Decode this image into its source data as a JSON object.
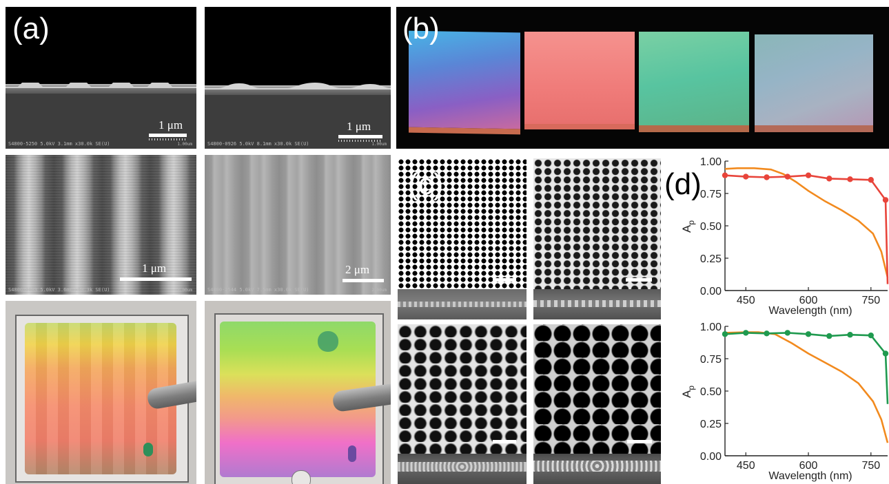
{
  "panels": {
    "a": {
      "letter": "(a)",
      "sem_top_left": {
        "scale": "1 μm",
        "info": "S4800-5250 5.0kV 3.1mm x30.0k SE(U)",
        "info_right": "1.00um"
      },
      "sem_top_right": {
        "scale": "1 μm",
        "info": "S4800-0926 5.0kV 8.1mm x30.0k SE(U)",
        "info_right": "1.00um"
      },
      "sem_mid_left": {
        "scale": "1 μm",
        "info": "S4800-0883 5.0kV 3.6mm x50.3k SE(U)",
        "info_right": "1.00um"
      },
      "sem_mid_right": {
        "scale": "2 μm",
        "info": "S4800-2544 5.0kV 7.5mm x30.0k SE(U)",
        "info_right": "2.00um"
      }
    },
    "b": {
      "letter": "(b)"
    },
    "c": {
      "letter": "(c)"
    },
    "d": {
      "letter": "(d)"
    }
  },
  "chart_data": [
    {
      "type": "line",
      "xlabel": "Wavelength (nm)",
      "ylabel": "A",
      "ylabel_sub": "p",
      "xlim": [
        400,
        790
      ],
      "ylim": [
        0,
        1.0
      ],
      "xticks": [
        450,
        600,
        750
      ],
      "yticks": [
        0.0,
        0.25,
        0.5,
        0.75,
        1.0
      ],
      "ytick_labels": [
        "0.00",
        "0.25",
        "0.50",
        "0.75",
        "1.00"
      ],
      "series": [
        {
          "color": "#e8443a",
          "markers": true,
          "x": [
            400,
            450,
            500,
            550,
            600,
            650,
            700,
            750,
            785,
            790
          ],
          "y": [
            0.89,
            0.88,
            0.875,
            0.88,
            0.89,
            0.865,
            0.86,
            0.855,
            0.7,
            0.05
          ]
        },
        {
          "color": "#f28a1e",
          "markers": false,
          "x": [
            400,
            430,
            470,
            510,
            540,
            570,
            600,
            640,
            680,
            720,
            755,
            775,
            790
          ],
          "y": [
            0.94,
            0.945,
            0.945,
            0.935,
            0.9,
            0.84,
            0.77,
            0.69,
            0.62,
            0.54,
            0.44,
            0.3,
            0.1
          ]
        }
      ]
    },
    {
      "type": "line",
      "xlabel": "Wavelength (nm)",
      "ylabel": "A",
      "ylabel_sub": "p",
      "xlim": [
        400,
        790
      ],
      "ylim": [
        0,
        1.0
      ],
      "xticks": [
        450,
        600,
        750
      ],
      "yticks": [
        0.0,
        0.25,
        0.5,
        0.75,
        1.0
      ],
      "ytick_labels": [
        "0.00",
        "0.25",
        "0.50",
        "0.75",
        "1.00"
      ],
      "series": [
        {
          "color": "#1f9a4f",
          "markers": true,
          "x": [
            400,
            450,
            500,
            550,
            600,
            650,
            700,
            750,
            785,
            790
          ],
          "y": [
            0.94,
            0.95,
            0.945,
            0.95,
            0.94,
            0.925,
            0.935,
            0.93,
            0.79,
            0.4
          ]
        },
        {
          "color": "#f28a1e",
          "markers": false,
          "x": [
            400,
            450,
            480,
            520,
            560,
            600,
            640,
            680,
            720,
            755,
            775,
            790
          ],
          "y": [
            0.95,
            0.955,
            0.955,
            0.94,
            0.87,
            0.79,
            0.72,
            0.65,
            0.56,
            0.42,
            0.28,
            0.1
          ]
        }
      ]
    }
  ]
}
